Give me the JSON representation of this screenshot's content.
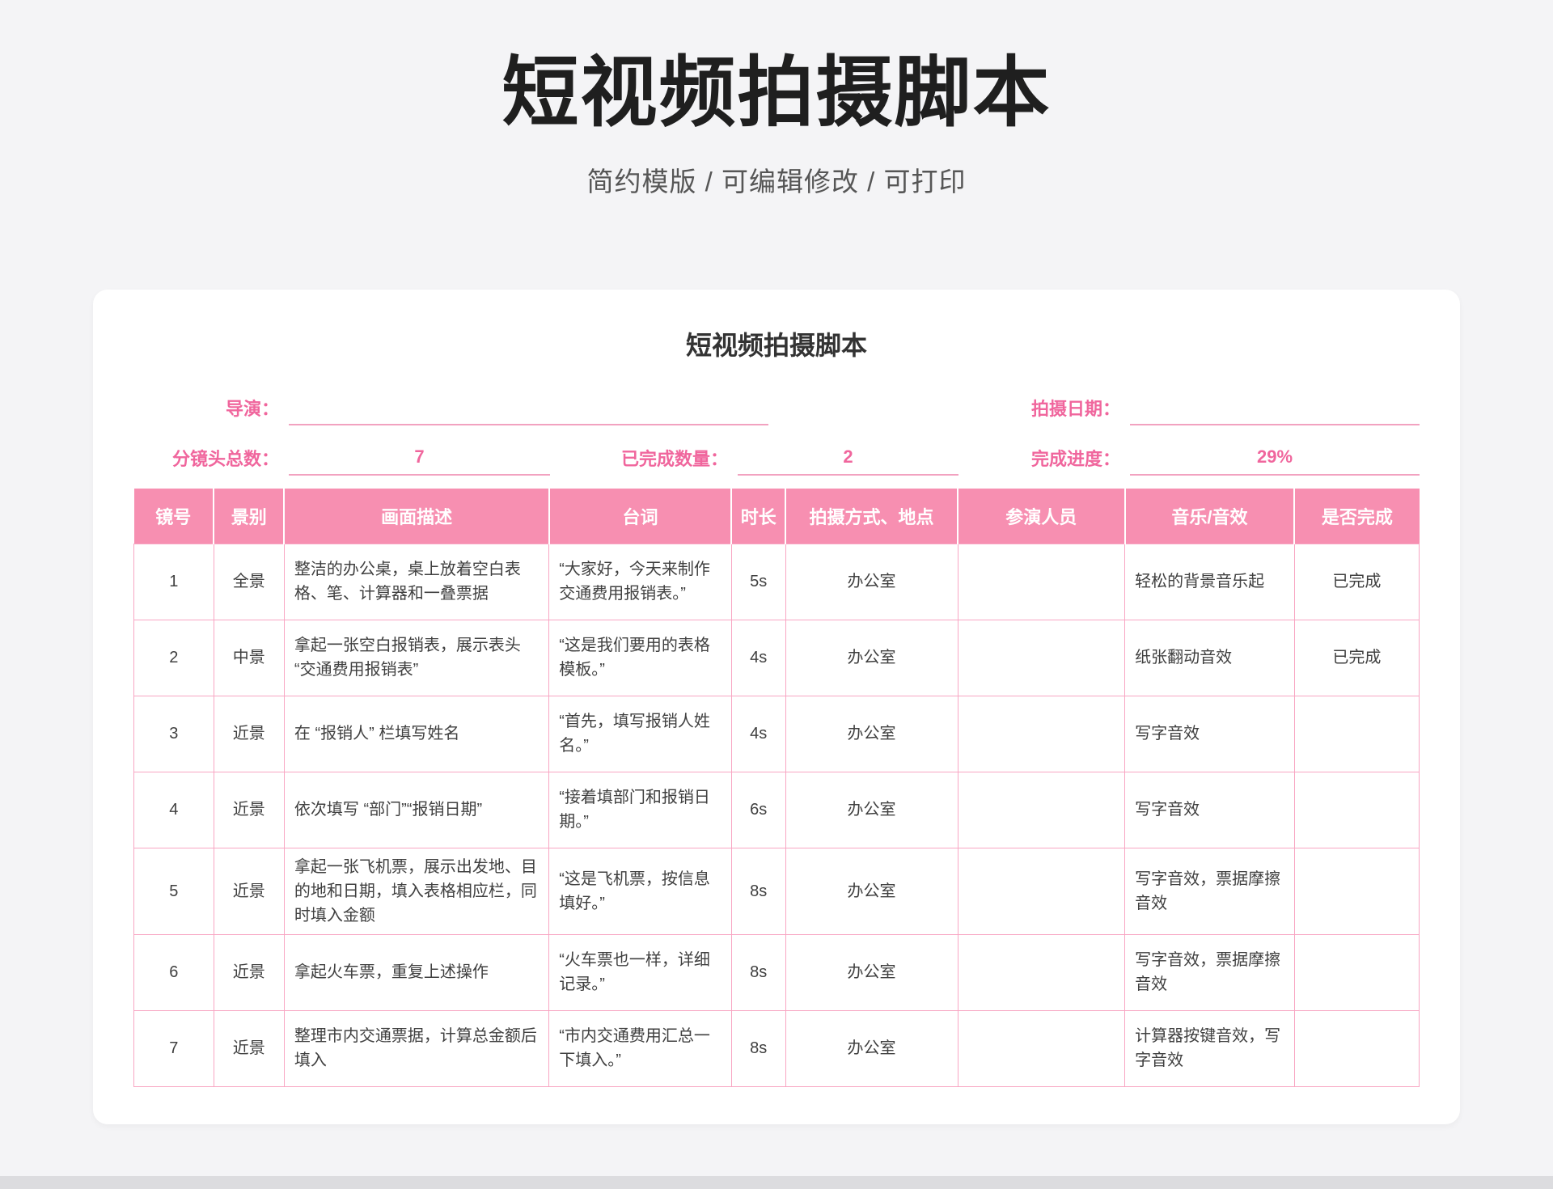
{
  "page": {
    "title": "短视频拍摄脚本",
    "subtitle": "简约模版 / 可编辑修改 / 可打印"
  },
  "card": {
    "title": "短视频拍摄脚本",
    "form": {
      "director": {
        "label": "导演：",
        "value": ""
      },
      "shoot_date": {
        "label": "拍摄日期：",
        "value": ""
      },
      "total_shots": {
        "label": "分镜头总数：",
        "value": "7"
      },
      "completed_count": {
        "label": "已完成数量：",
        "value": "2"
      },
      "progress": {
        "label": "完成进度：",
        "value": "29%"
      }
    }
  },
  "table": {
    "headers": [
      "镜号",
      "景别",
      "画面描述",
      "台词",
      "时长",
      "拍摄方式、地点",
      "参演人员",
      "音乐/音效",
      "是否完成"
    ],
    "column_keys": [
      "shot-no",
      "scene-type",
      "description",
      "lines",
      "duration",
      "method-location",
      "cast",
      "music-sfx",
      "done"
    ],
    "rows": [
      [
        "1",
        "全景",
        "整洁的办公桌，桌上放着空白表格、笔、计算器和一叠票据",
        "“大家好，今天来制作交通费用报销表。”",
        "5s",
        "办公室",
        "",
        "轻松的背景音乐起",
        "已完成"
      ],
      [
        "2",
        "中景",
        "拿起一张空白报销表，展示表头“交通费用报销表”",
        "“这是我们要用的表格模板。”",
        "4s",
        "办公室",
        "",
        "纸张翻动音效",
        "已完成"
      ],
      [
        "3",
        "近景",
        "在 “报销人” 栏填写姓名",
        "“首先，填写报销人姓名。”",
        "4s",
        "办公室",
        "",
        "写字音效",
        ""
      ],
      [
        "4",
        "近景",
        "依次填写 “部门”“报销日期”",
        "“接着填部门和报销日期。”",
        "6s",
        "办公室",
        "",
        "写字音效",
        ""
      ],
      [
        "5",
        "近景",
        "拿起一张飞机票，展示出发地、目的地和日期，填入表格相应栏，同时填入金额",
        "“这是飞机票，按信息填好。”",
        "8s",
        "办公室",
        "",
        "写字音效，票据摩擦音效",
        ""
      ],
      [
        "6",
        "近景",
        "拿起火车票，重复上述操作",
        "“火车票也一样，详细记录。”",
        "8s",
        "办公室",
        "",
        "写字音效，票据摩擦音效",
        ""
      ],
      [
        "7",
        "近景",
        "整理市内交通票据，计算总金额后填入",
        "“市内交通费用汇总一下填入。”",
        "8s",
        "办公室",
        "",
        "计算器按键音效，写字音效",
        ""
      ]
    ]
  },
  "colors": {
    "header_pink": "#f78fb1",
    "label_pink": "#f0669d",
    "border_pink": "#f8a6c3"
  }
}
